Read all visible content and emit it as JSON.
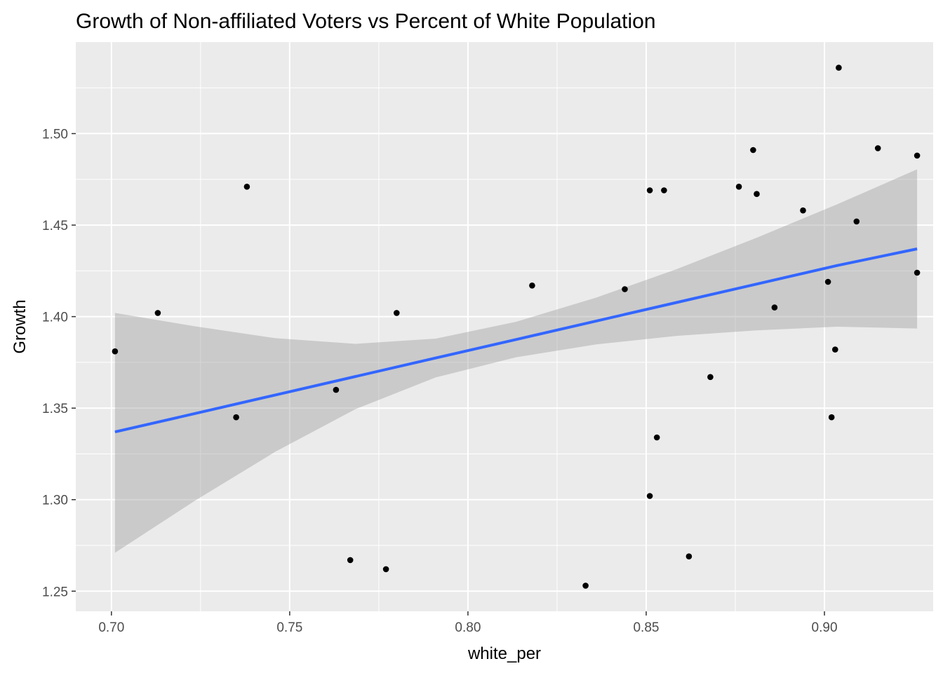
{
  "chart_data": {
    "type": "scatter",
    "title": "Growth of Non-affiliated Voters vs Percent of White Population",
    "xlabel": "white_per",
    "ylabel": "Growth",
    "xlim": [
      0.69,
      0.9305
    ],
    "ylim": [
      1.239,
      1.55
    ],
    "x_ticks": [
      0.7,
      0.75,
      0.8,
      0.85,
      0.9
    ],
    "x_tick_labels": [
      "0.70",
      "0.75",
      "0.80",
      "0.85",
      "0.90"
    ],
    "y_ticks": [
      1.25,
      1.3,
      1.35,
      1.4,
      1.45,
      1.5
    ],
    "y_tick_labels": [
      "1.25",
      "1.30",
      "1.35",
      "1.40",
      "1.45",
      "1.50"
    ],
    "grid": true,
    "background_color": "#ebebeb",
    "point_color": "#000000",
    "line_color": "#3366ff",
    "ribbon_color": "#999999",
    "points": [
      {
        "x": 0.701,
        "y": 1.381
      },
      {
        "x": 0.713,
        "y": 1.402
      },
      {
        "x": 0.735,
        "y": 1.345
      },
      {
        "x": 0.738,
        "y": 1.471
      },
      {
        "x": 0.763,
        "y": 1.36
      },
      {
        "x": 0.767,
        "y": 1.267
      },
      {
        "x": 0.777,
        "y": 1.262
      },
      {
        "x": 0.78,
        "y": 1.402
      },
      {
        "x": 0.818,
        "y": 1.417
      },
      {
        "x": 0.833,
        "y": 1.253
      },
      {
        "x": 0.844,
        "y": 1.415
      },
      {
        "x": 0.851,
        "y": 1.469
      },
      {
        "x": 0.851,
        "y": 1.302
      },
      {
        "x": 0.853,
        "y": 1.334
      },
      {
        "x": 0.855,
        "y": 1.469
      },
      {
        "x": 0.862,
        "y": 1.269
      },
      {
        "x": 0.868,
        "y": 1.367
      },
      {
        "x": 0.876,
        "y": 1.471
      },
      {
        "x": 0.88,
        "y": 1.491
      },
      {
        "x": 0.881,
        "y": 1.467
      },
      {
        "x": 0.886,
        "y": 1.405
      },
      {
        "x": 0.894,
        "y": 1.458
      },
      {
        "x": 0.901,
        "y": 1.419
      },
      {
        "x": 0.902,
        "y": 1.345
      },
      {
        "x": 0.903,
        "y": 1.382
      },
      {
        "x": 0.904,
        "y": 1.536
      },
      {
        "x": 0.909,
        "y": 1.452
      },
      {
        "x": 0.915,
        "y": 1.492
      },
      {
        "x": 0.926,
        "y": 1.424
      },
      {
        "x": 0.926,
        "y": 1.488
      }
    ],
    "trend": {
      "x": [
        0.701,
        0.7235,
        0.746,
        0.7685,
        0.791,
        0.8135,
        0.836,
        0.8585,
        0.881,
        0.9035,
        0.926
      ],
      "y": [
        1.337,
        1.3471,
        1.3572,
        1.3673,
        1.3774,
        1.3875,
        1.3976,
        1.4077,
        1.4178,
        1.4279,
        1.437
      ],
      "lower": [
        1.271,
        1.2995,
        1.3262,
        1.3495,
        1.3668,
        1.3778,
        1.3848,
        1.3895,
        1.3925,
        1.3945,
        1.3935
      ],
      "upper": [
        1.402,
        1.3947,
        1.3882,
        1.3851,
        1.388,
        1.3972,
        1.4104,
        1.4259,
        1.4431,
        1.4613,
        1.4805
      ]
    }
  }
}
